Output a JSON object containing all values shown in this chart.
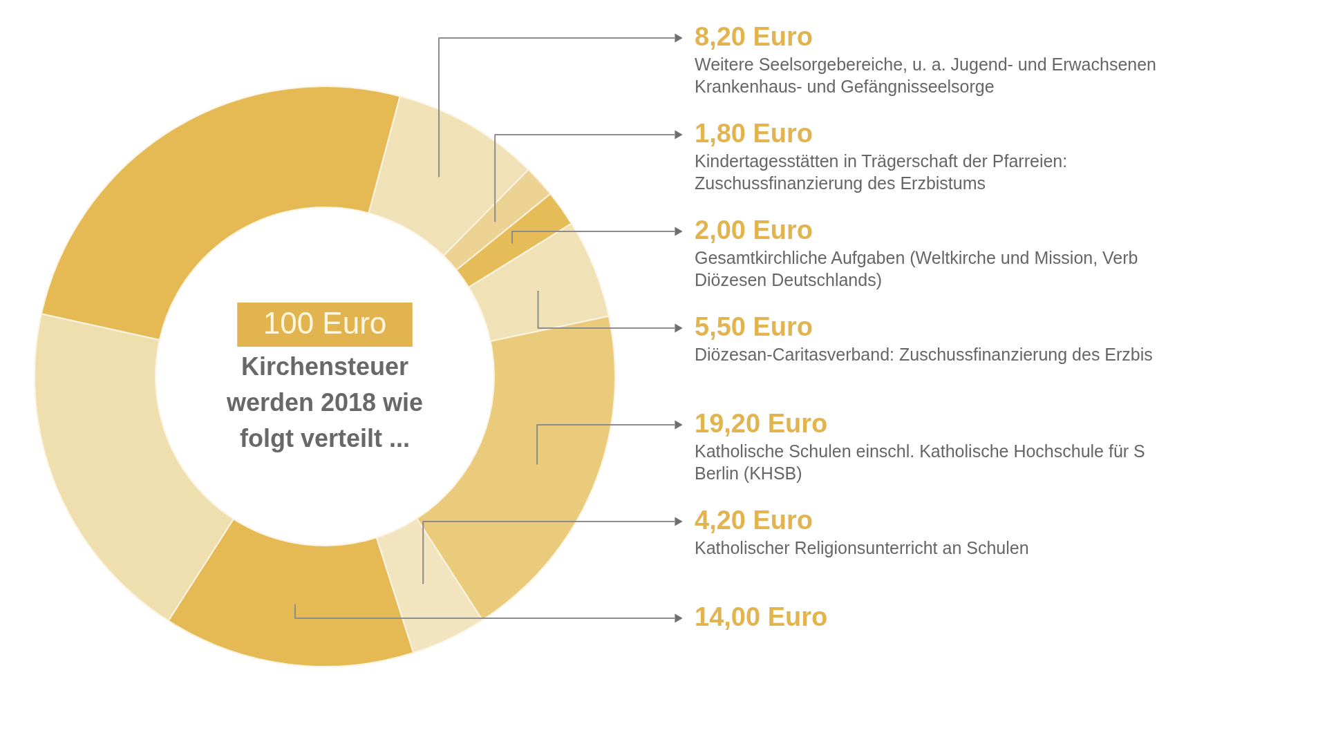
{
  "chart_data": {
    "type": "donut",
    "title": "100 Euro",
    "subtitle": "Kirchensteuer werden 2018 wie folgt verteilt ...",
    "categories": [
      "Weitere Seelsorgebereiche, u. a. Jugend- und Erwachsenen Krankenhaus- und Gefängnisseelsorge",
      "Kindertagesstätten in Trägerschaft der Pfarreien: Zuschussfinanzierung des Erzbistums",
      "Gesamtkirchliche Aufgaben (Weltkirche und Mission, Verb Diözesen Deutschlands)",
      "Diözesan-Caritasverband: Zuschussfinanzierung des Erzbis",
      "Katholische Schulen einschl. Katholische Hochschule für S Berlin (KHSB)",
      "Katholischer Religionsunterricht an Schulen",
      null,
      null,
      null
    ],
    "values": [
      8.2,
      1.8,
      2.0,
      5.5,
      19.2,
      4.2,
      14.0,
      19.4,
      25.7
    ],
    "colors": [
      "#f0e1b6",
      "#ecd293",
      "#e5bc58",
      "#f0e1b6",
      "#eacb7c",
      "#f1e4bf",
      "#e5ba55",
      "#f0dfae",
      "#e5ba55"
    ],
    "value_labels": [
      "8,20 Euro",
      "1,80 Euro",
      "2,00 Euro",
      "5,50 Euro",
      "19,20 Euro",
      "4,20 Euro",
      "14,00 Euro",
      null,
      null
    ]
  }
}
